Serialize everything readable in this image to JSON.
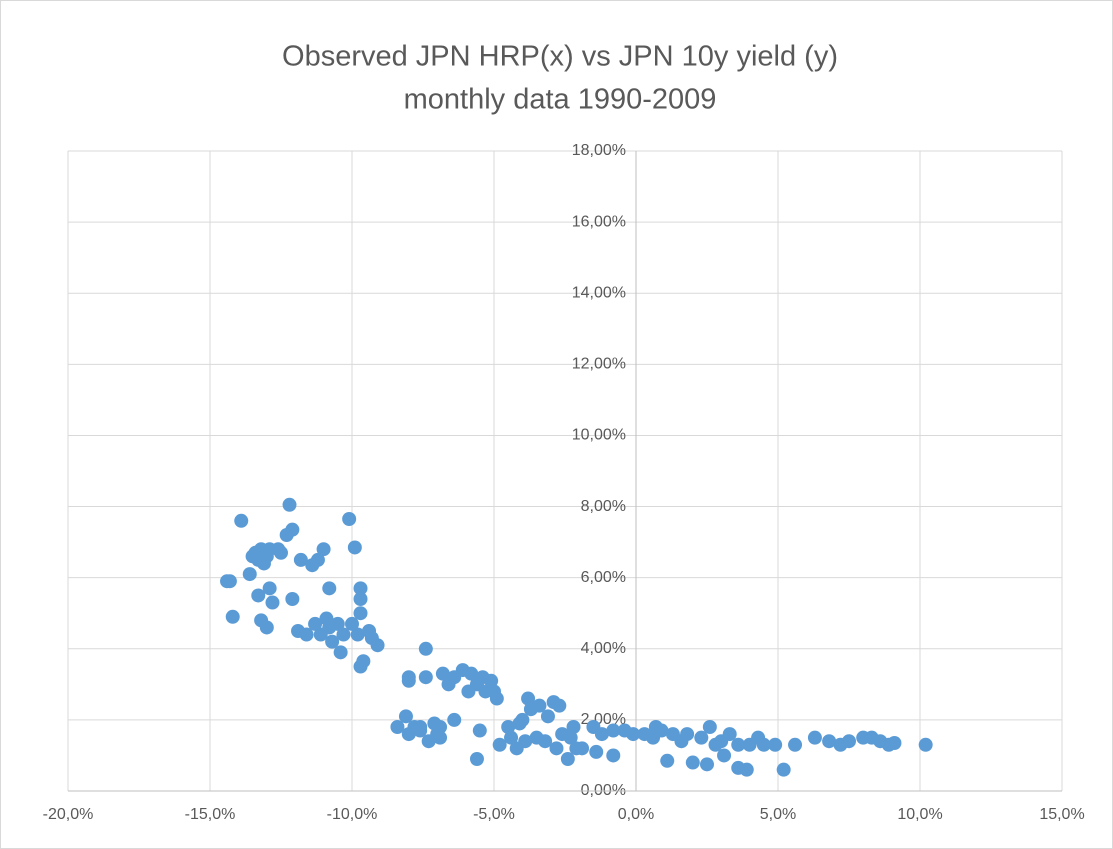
{
  "chart_data": {
    "type": "scatter",
    "title": "Observed JPN HRP(x) vs JPN 10y yield (y)",
    "subtitle": "monthly data 1990-2009",
    "color": "#5b9bd5",
    "grid": true,
    "xlim": [
      -20,
      15
    ],
    "ylim": [
      0,
      18
    ],
    "xticks": [
      {
        "value": -20,
        "label": "-20,0%"
      },
      {
        "value": -15,
        "label": "-15,0%"
      },
      {
        "value": -10,
        "label": "-10,0%"
      },
      {
        "value": -5,
        "label": "-5,0%"
      },
      {
        "value": 0,
        "label": "0,0%"
      },
      {
        "value": 5,
        "label": "5,0%"
      },
      {
        "value": 10,
        "label": "10,0%"
      },
      {
        "value": 15,
        "label": "15,0%"
      }
    ],
    "yticks": [
      {
        "value": 0,
        "label": "0,00%"
      },
      {
        "value": 2,
        "label": "2,00%"
      },
      {
        "value": 4,
        "label": "4,00%"
      },
      {
        "value": 6,
        "label": "6,00%"
      },
      {
        "value": 8,
        "label": "8,00%"
      },
      {
        "value": 10,
        "label": "10,00%"
      },
      {
        "value": 12,
        "label": "12,00%"
      },
      {
        "value": 14,
        "label": "14,00%"
      },
      {
        "value": 16,
        "label": "16,00%"
      },
      {
        "value": 18,
        "label": "18,00%"
      }
    ],
    "x": [
      -14.4,
      -14.3,
      -14.2,
      -13.9,
      -13.6,
      -13.5,
      -13.4,
      -13.3,
      -13.3,
      -13.2,
      -13.1,
      -13.0,
      -12.9,
      -12.9,
      -13.2,
      -13.0,
      -12.8,
      -12.6,
      -12.5,
      -12.3,
      -12.2,
      -12.1,
      -12.1,
      -11.9,
      -11.8,
      -11.6,
      -11.4,
      -11.3,
      -11.2,
      -11.0,
      -11.1,
      -10.9,
      -10.8,
      -10.8,
      -10.7,
      -10.5,
      -10.4,
      -10.3,
      -10.1,
      -10.0,
      -9.9,
      -9.8,
      -9.7,
      -9.7,
      -9.7,
      -9.7,
      -9.6,
      -9.4,
      -9.3,
      -9.1,
      -8.4,
      -8.1,
      -8.0,
      -8.0,
      -8.0,
      -7.8,
      -7.6,
      -7.6,
      -7.4,
      -7.4,
      -7.3,
      -7.1,
      -7.0,
      -6.9,
      -6.9,
      -6.8,
      -6.6,
      -6.4,
      -6.4,
      -6.1,
      -5.9,
      -5.8,
      -5.6,
      -5.6,
      -5.5,
      -5.4,
      -5.3,
      -5.1,
      -5.0,
      -4.9,
      -4.8,
      -4.5,
      -4.4,
      -4.2,
      -4.1,
      -4.0,
      -3.9,
      -3.8,
      -3.7,
      -3.5,
      -3.4,
      -3.2,
      -3.1,
      -2.9,
      -2.7,
      -2.8,
      -2.6,
      -2.4,
      -2.3,
      -2.2,
      -2.1,
      -1.9,
      -1.5,
      -1.4,
      -1.2,
      -0.8,
      -0.8,
      -0.4,
      -0.1,
      0.3,
      0.6,
      0.7,
      0.9,
      1.1,
      1.3,
      1.6,
      1.8,
      2.0,
      2.3,
      2.5,
      2.6,
      2.8,
      3.0,
      3.1,
      3.3,
      3.6,
      3.6,
      3.9,
      4.0,
      4.3,
      4.5,
      4.9,
      5.2,
      5.6,
      6.3,
      6.8,
      7.2,
      7.5,
      8.0,
      8.3,
      8.6,
      8.9,
      9.1,
      10.2
    ],
    "y": [
      5.9,
      5.9,
      4.9,
      7.6,
      6.1,
      6.6,
      6.7,
      6.5,
      5.5,
      6.8,
      6.4,
      6.6,
      6.8,
      5.7,
      4.8,
      4.6,
      5.3,
      6.8,
      6.7,
      7.2,
      8.05,
      7.35,
      5.4,
      4.5,
      6.5,
      4.4,
      6.35,
      4.7,
      6.5,
      6.8,
      4.4,
      4.85,
      5.7,
      4.6,
      4.2,
      4.7,
      3.9,
      4.4,
      7.65,
      4.7,
      6.85,
      4.4,
      5.7,
      5.4,
      5.0,
      3.5,
      3.65,
      4.5,
      4.3,
      4.1,
      1.8,
      2.1,
      3.2,
      3.1,
      1.6,
      1.8,
      1.8,
      1.7,
      4.0,
      3.2,
      1.4,
      1.9,
      1.6,
      1.8,
      1.5,
      3.3,
      3.0,
      3.2,
      2.0,
      3.4,
      2.8,
      3.3,
      0.9,
      3.0,
      1.7,
      3.2,
      2.8,
      3.1,
      2.8,
      2.6,
      1.3,
      1.8,
      1.5,
      1.2,
      1.9,
      2.0,
      1.4,
      2.6,
      2.3,
      1.5,
      2.4,
      1.4,
      2.1,
      2.5,
      2.4,
      1.2,
      1.6,
      0.9,
      1.5,
      1.8,
      1.2,
      1.2,
      1.8,
      1.1,
      1.6,
      1.7,
      1.0,
      1.7,
      1.6,
      1.6,
      1.5,
      1.8,
      1.7,
      0.85,
      1.6,
      1.4,
      1.6,
      0.8,
      1.5,
      0.75,
      1.8,
      1.3,
      1.4,
      1.0,
      1.6,
      1.3,
      0.65,
      0.6,
      1.3,
      1.5,
      1.3,
      1.3,
      0.6,
      1.3,
      1.5,
      1.4,
      1.3,
      1.4,
      1.5,
      1.5,
      1.4,
      1.3,
      1.35,
      1.3
    ]
  }
}
